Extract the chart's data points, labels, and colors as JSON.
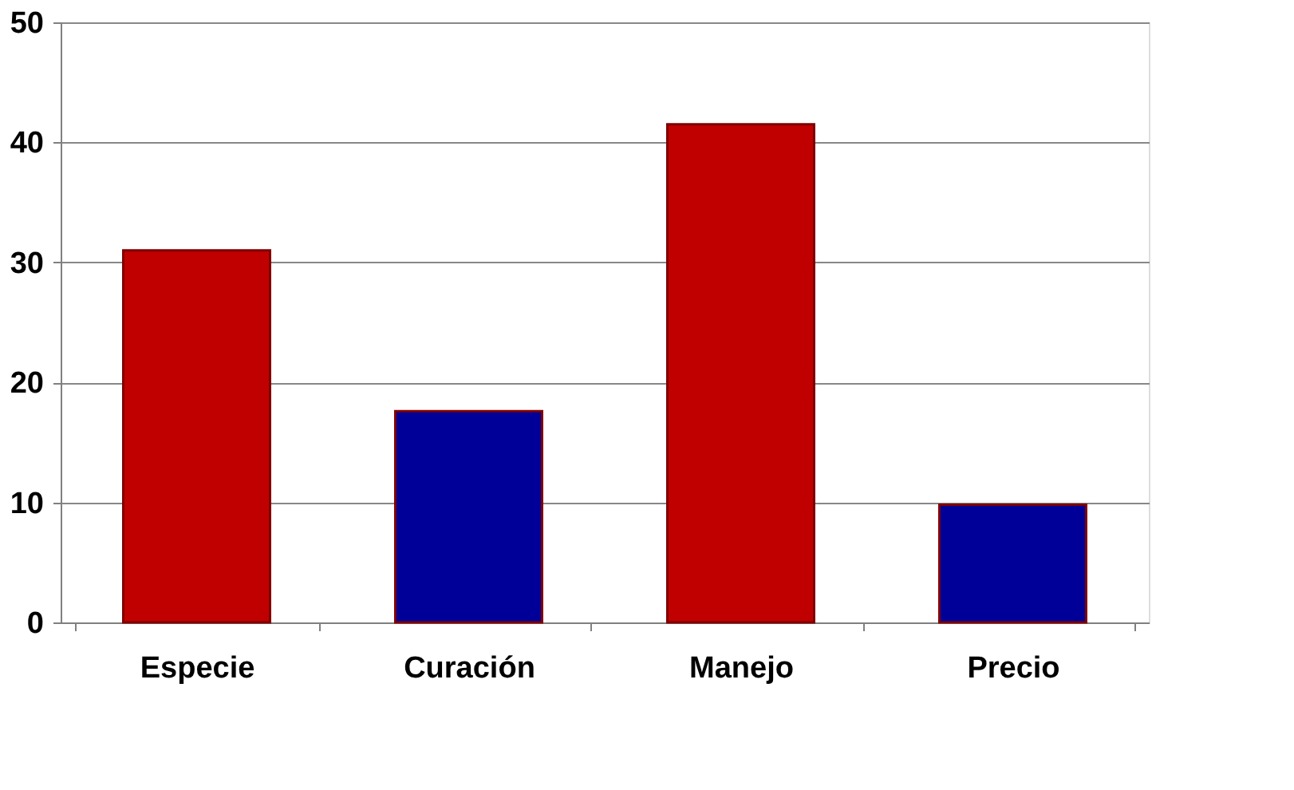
{
  "chart_data": {
    "type": "bar",
    "categories": [
      "Especie",
      "Curación",
      "Manejo",
      "Precio"
    ],
    "values": [
      31,
      17.6,
      41.5,
      9.8
    ],
    "colors": [
      "#c00000",
      "#000099",
      "#c00000",
      "#000099"
    ],
    "ylim": [
      0,
      50
    ],
    "yticks": [
      0,
      10,
      20,
      30,
      40,
      50
    ],
    "grid": "y"
  }
}
